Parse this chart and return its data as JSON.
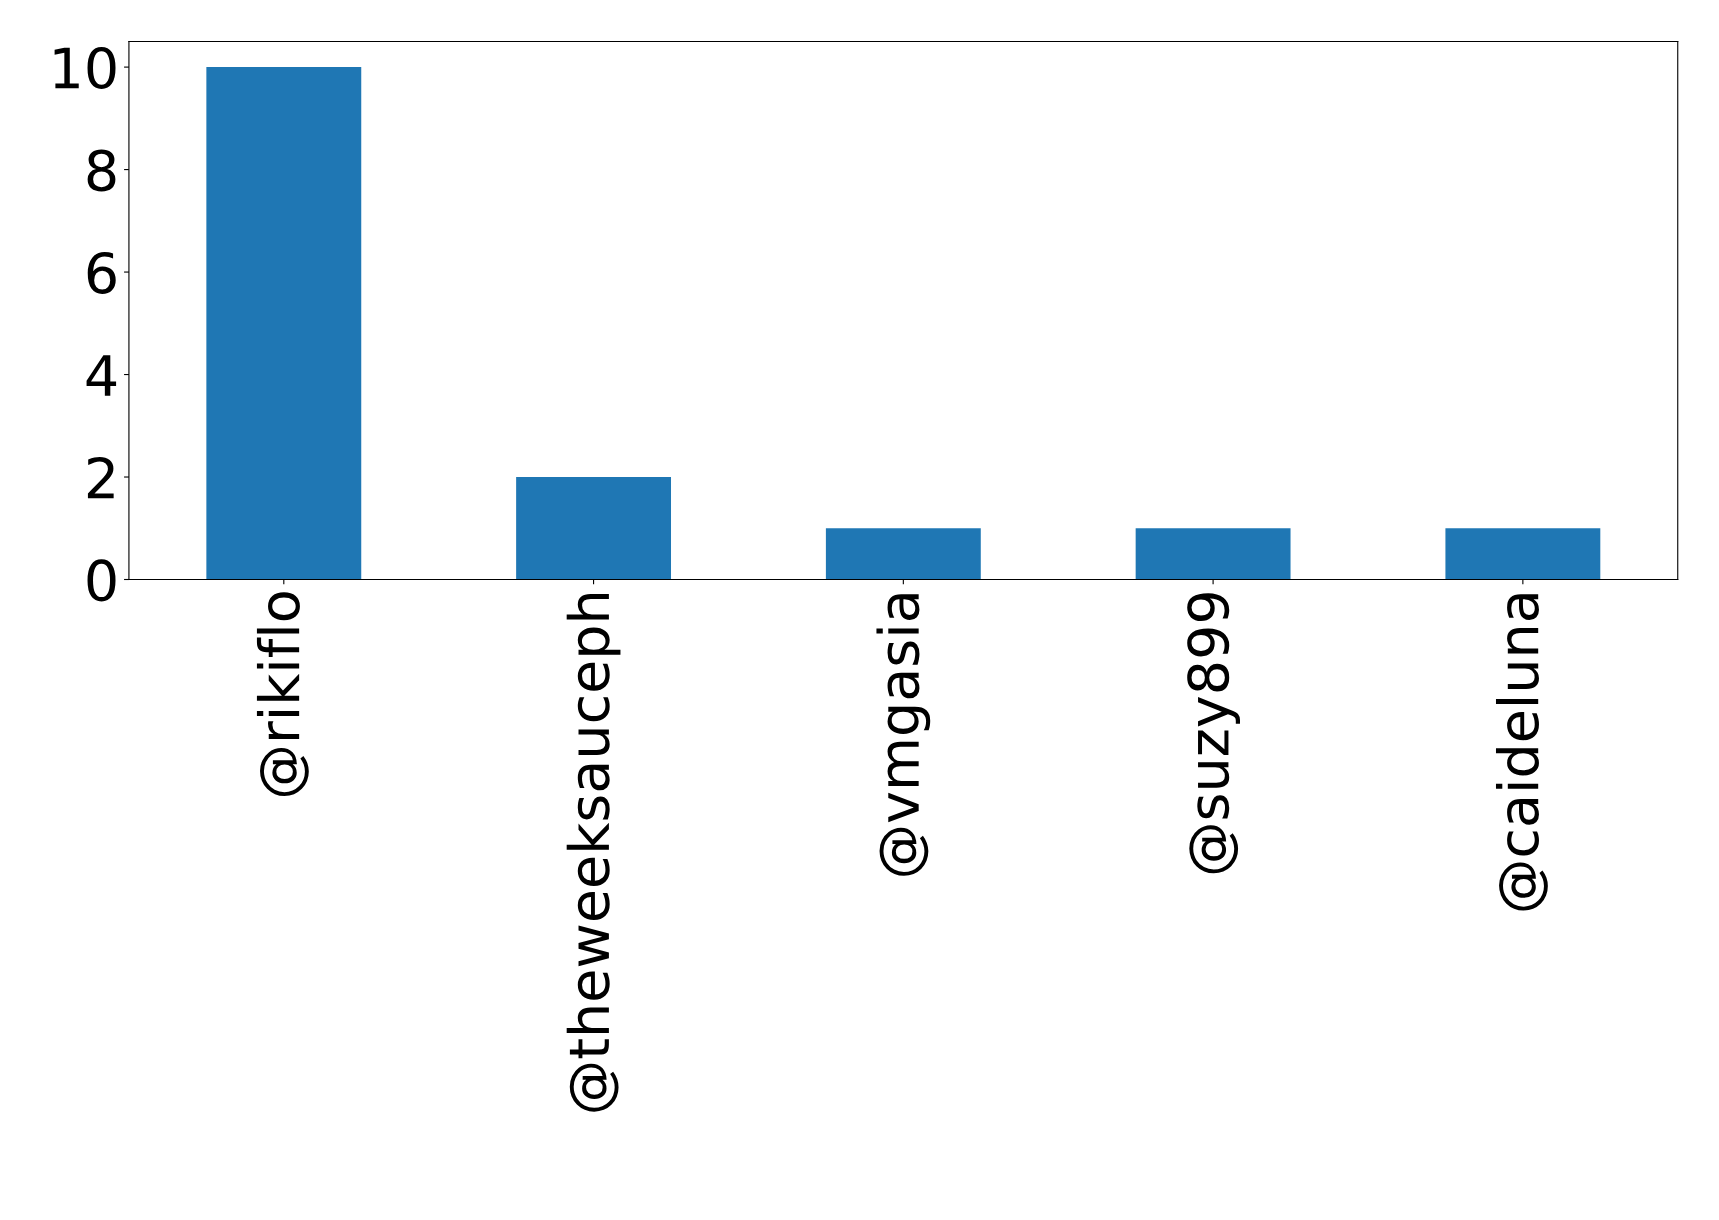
{
  "chart_data": {
    "type": "bar",
    "categories": [
      "@rikiflo",
      "@theweeksauceph",
      "@vmgasia",
      "@suzy899",
      "@caideluna"
    ],
    "values": [
      10,
      2,
      1,
      1,
      1
    ],
    "color": "#1f77b4",
    "ylim": [
      0,
      10.5
    ],
    "yticks": [
      0,
      2,
      4,
      6,
      8,
      10
    ],
    "grid": false
  }
}
